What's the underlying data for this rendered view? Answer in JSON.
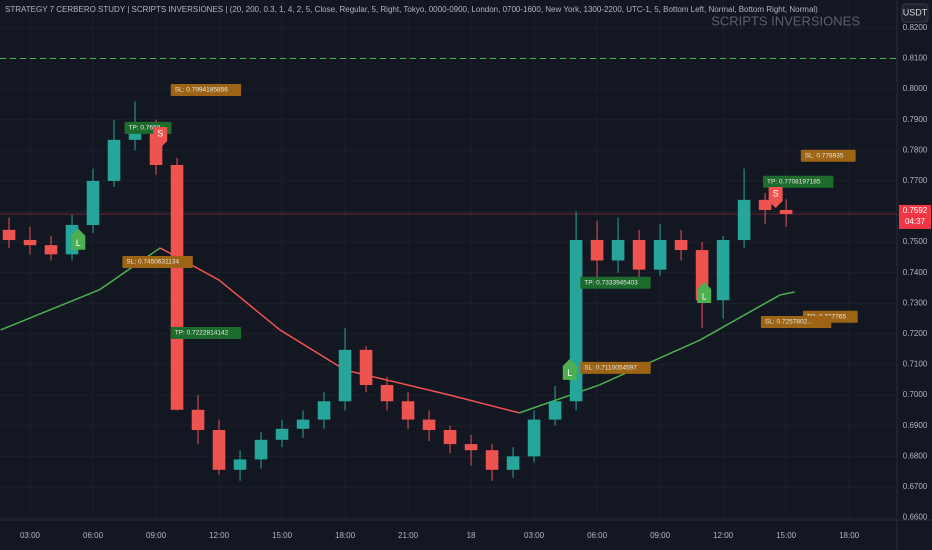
{
  "chart_data": {
    "type": "candlestick",
    "title": "STRATEGY 7 CERBERO STUDY | SCRIPTS INVERSIONES | (20, 200, 0.3, 1, 4, 2, 5, Close, Regular, 5, Right, Tokyo, 0000-0900, London, 0700-1600, New York, 1300-2200, UTC-1, 5, Bottom Left, Normal, Bottom Right, Normal)",
    "watermark": "SCRIPTS INVERSIONES",
    "currency": "USDT",
    "up_color": "#26a69a",
    "down_color": "#ef5350",
    "grid": true,
    "x": [
      2,
      3,
      4,
      5,
      6,
      7,
      8,
      9,
      10,
      11,
      12,
      13,
      14,
      15,
      16,
      17,
      18,
      19,
      20,
      21,
      22,
      23,
      24,
      25,
      26,
      27,
      28,
      29,
      30,
      31,
      32,
      33,
      34,
      35,
      36,
      37,
      38,
      39
    ],
    "open": [
      0.754,
      0.7507,
      0.749,
      0.746,
      0.7556,
      0.77,
      0.7834,
      0.7867,
      0.7752,
      0.6952,
      0.6886,
      0.6756,
      0.679,
      0.6854,
      0.689,
      0.692,
      0.698,
      0.7148,
      0.7033,
      0.698,
      0.692,
      0.6886,
      0.684,
      0.682,
      0.6756,
      0.68,
      0.692,
      0.698,
      0.7507,
      0.744,
      0.7507,
      0.741,
      0.7507,
      0.7474,
      0.731,
      0.7507,
      0.7638,
      0.7605
    ],
    "high": [
      0.758,
      0.755,
      0.752,
      0.759,
      0.774,
      0.79,
      0.796,
      0.79,
      0.7775,
      0.7,
      0.692,
      0.682,
      0.688,
      0.692,
      0.695,
      0.701,
      0.722,
      0.716,
      0.706,
      0.701,
      0.695,
      0.69,
      0.687,
      0.684,
      0.683,
      0.695,
      0.703,
      0.76,
      0.757,
      0.758,
      0.754,
      0.756,
      0.754,
      0.75,
      0.752,
      0.774,
      0.766,
      0.764
    ],
    "low": [
      0.748,
      0.746,
      0.744,
      0.744,
      0.753,
      0.768,
      0.78,
      0.772,
      0.695,
      0.684,
      0.674,
      0.672,
      0.676,
      0.683,
      0.686,
      0.689,
      0.695,
      0.701,
      0.695,
      0.689,
      0.685,
      0.681,
      0.677,
      0.672,
      0.673,
      0.678,
      0.69,
      0.695,
      0.738,
      0.74,
      0.737,
      0.739,
      0.744,
      0.722,
      0.725,
      0.748,
      0.756,
      0.755
    ],
    "close": [
      0.7507,
      0.749,
      0.746,
      0.7556,
      0.77,
      0.7834,
      0.7867,
      0.7752,
      0.6952,
      0.6886,
      0.6756,
      0.679,
      0.6854,
      0.689,
      0.692,
      0.698,
      0.7148,
      0.7033,
      0.698,
      0.692,
      0.6886,
      0.684,
      0.682,
      0.6756,
      0.68,
      0.692,
      0.698,
      0.7507,
      0.744,
      0.7507,
      0.741,
      0.7507,
      0.7474,
      0.731,
      0.7507,
      0.7638,
      0.7605,
      0.7592
    ],
    "moving_average": {
      "x": [
        1.6,
        6.3,
        9.2,
        12.0,
        14.9,
        18.0,
        23.0,
        26.3,
        30.1,
        34.9,
        38.7,
        39.4
      ],
      "values": [
        0.7213,
        0.7344,
        0.7481,
        0.7376,
        0.7213,
        0.7082,
        0.7,
        0.6942,
        0.7033,
        0.718,
        0.7327,
        0.7337
      ],
      "colors": [
        "#ef5350",
        "#4caf50"
      ]
    },
    "hline": {
      "value": 0.81,
      "color": "#4caf50"
    },
    "price_tag": {
      "value": 0.7592,
      "label": "0.7592",
      "countdown": "04:37",
      "color": "#f23645"
    },
    "markers": [
      {
        "label": "L",
        "x": 5.3,
        "y": 0.7501,
        "color": "#4caf50"
      },
      {
        "label": "S",
        "x": 9.2,
        "y": 0.785,
        "color": "#ef5350"
      },
      {
        "label": "L",
        "x": 28.7,
        "y": 0.7076,
        "color": "#4caf50"
      },
      {
        "label": "L",
        "x": 35.1,
        "y": 0.7327,
        "color": "#4caf50"
      },
      {
        "label": "S",
        "x": 38.5,
        "y": 0.7654,
        "color": "#ef5350"
      }
    ],
    "annotations": [
      {
        "text": "SL: 0.7994185856",
        "x": 9.7,
        "y": 0.7997,
        "color": "#9c6414"
      },
      {
        "text": "TP: 0.7658",
        "x": 7.5,
        "y": 0.7873,
        "color": "#1e6b2e"
      },
      {
        "text": "SL: 0.7450631134",
        "x": 7.4,
        "y": 0.7435,
        "color": "#9c6414"
      },
      {
        "text": "TP: 0.7222814142",
        "x": 9.7,
        "y": 0.7203,
        "color": "#1e6b2e"
      },
      {
        "text": "TP: 0.7333945403",
        "x": 29.2,
        "y": 0.7367,
        "color": "#1e6b2e"
      },
      {
        "text": "SL: 0.7110054597",
        "x": 29.2,
        "y": 0.7089,
        "color": "#9c6414"
      },
      {
        "text": "SL: 0.778935",
        "x": 39.7,
        "y": 0.7782,
        "color": "#9c6414"
      },
      {
        "text": "TP: 0.7708197185",
        "x": 37.9,
        "y": 0.7697,
        "color": "#1e6b2e"
      },
      {
        "text": "TP: 0.727765",
        "x": 39.8,
        "y": 0.7256,
        "color": "#9c6414"
      },
      {
        "text": "SL: 0.7257802...",
        "x": 37.8,
        "y": 0.7239,
        "color": "#9c6414"
      }
    ],
    "xlim": [
      1.571,
      44.28
    ],
    "ylim": [
      0.6592,
      0.8291
    ],
    "xticks": [
      {
        "value": 3,
        "label": "03:00"
      },
      {
        "value": 6,
        "label": "06:00"
      },
      {
        "value": 9,
        "label": "09:00"
      },
      {
        "value": 12,
        "label": "12:00"
      },
      {
        "value": 15,
        "label": "15:00"
      },
      {
        "value": 18,
        "label": "18:00"
      },
      {
        "value": 21,
        "label": "21:00"
      },
      {
        "value": 24,
        "label": "18"
      },
      {
        "value": 27,
        "label": "03:00"
      },
      {
        "value": 30,
        "label": "06:00"
      },
      {
        "value": 33,
        "label": "09:00"
      },
      {
        "value": 36,
        "label": "12:00"
      },
      {
        "value": 39,
        "label": "15:00"
      },
      {
        "value": 42,
        "label": "18:00"
      }
    ],
    "yticks": [
      {
        "value": 0.66,
        "label": "0.6600"
      },
      {
        "value": 0.67,
        "label": "0.6700"
      },
      {
        "value": 0.68,
        "label": "0.6800"
      },
      {
        "value": 0.69,
        "label": "0.6900"
      },
      {
        "value": 0.7,
        "label": "0.7000"
      },
      {
        "value": 0.71,
        "label": "0.7100"
      },
      {
        "value": 0.72,
        "label": "0.7200"
      },
      {
        "value": 0.73,
        "label": "0.7300"
      },
      {
        "value": 0.74,
        "label": "0.7400"
      },
      {
        "value": 0.75,
        "label": "0.7500"
      },
      {
        "value": 0.76,
        "label": "0.7600"
      },
      {
        "value": 0.77,
        "label": "0.7700"
      },
      {
        "value": 0.78,
        "label": "0.7800"
      },
      {
        "value": 0.79,
        "label": "0.7900"
      },
      {
        "value": 0.8,
        "label": "0.8000"
      },
      {
        "value": 0.81,
        "label": "0.8100"
      },
      {
        "value": 0.82,
        "label": "0.8200"
      }
    ]
  }
}
